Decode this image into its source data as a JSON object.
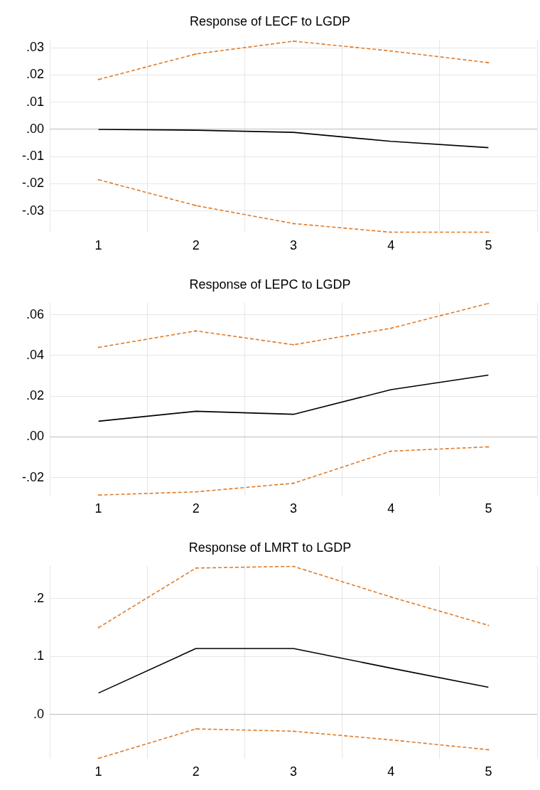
{
  "chart_data": [
    {
      "type": "line",
      "title": "Response of LECF to LGDP",
      "categories": [
        "1",
        "2",
        "3",
        "4",
        "5"
      ],
      "ylim": [
        -0.038,
        0.033
      ],
      "yticks": [
        {
          "value": -0.03,
          "label": "-.03"
        },
        {
          "value": -0.02,
          "label": "-.02"
        },
        {
          "value": -0.01,
          "label": "-.01"
        },
        {
          "value": 0,
          "label": ".00"
        },
        {
          "value": 0.01,
          "label": ".01"
        },
        {
          "value": 0.02,
          "label": ".02"
        },
        {
          "value": 0.03,
          "label": ".03"
        }
      ],
      "grid": true,
      "series": [
        {
          "color": "#e07b28",
          "line_style": "dashed",
          "values": [
            0.0183,
            0.0277,
            0.0324,
            0.0288,
            0.0245
          ]
        },
        {
          "color": "#000000",
          "line_style": "solid",
          "values": [
            0,
            -0.0003,
            -0.0011,
            -0.0044,
            -0.0067
          ]
        },
        {
          "color": "#e07b28",
          "line_style": "dashed",
          "values": [
            -0.0185,
            -0.028,
            -0.0346,
            -0.0378,
            -0.0378
          ]
        }
      ]
    },
    {
      "type": "line",
      "title": "Response of LEPC to LGDP",
      "categories": [
        "1",
        "2",
        "3",
        "4",
        "5"
      ],
      "ylim": [
        -0.029,
        0.066
      ],
      "yticks": [
        {
          "value": -0.02,
          "label": "-.02"
        },
        {
          "value": 0,
          "label": ".00"
        },
        {
          "value": 0.02,
          "label": ".02"
        },
        {
          "value": 0.04,
          "label": ".04"
        },
        {
          "value": 0.06,
          "label": ".06"
        }
      ],
      "grid": true,
      "series": [
        {
          "color": "#e07b28",
          "line_style": "dashed",
          "values": [
            0.044,
            0.0521,
            0.0453,
            0.0534,
            0.0656
          ]
        },
        {
          "color": "#000000",
          "line_style": "solid",
          "values": [
            0.0077,
            0.0126,
            0.0111,
            0.0232,
            0.0304
          ]
        },
        {
          "color": "#e07b28",
          "line_style": "dashed",
          "values": [
            -0.0286,
            -0.027,
            -0.0228,
            -0.007,
            -0.0049
          ]
        }
      ]
    },
    {
      "type": "line",
      "title": "Response of LMRT to LGDP",
      "categories": [
        "1",
        "2",
        "3",
        "4",
        "5"
      ],
      "ylim": [
        -0.077,
        0.257
      ],
      "yticks": [
        {
          "value": 0,
          "label": ".0"
        },
        {
          "value": 0.1,
          "label": ".1"
        },
        {
          "value": 0.2,
          "label": ".2"
        }
      ],
      "grid": true,
      "series": [
        {
          "color": "#e07b28",
          "line_style": "dashed",
          "values": [
            0.15,
            0.253,
            0.256,
            0.203,
            0.154
          ]
        },
        {
          "color": "#000000",
          "line_style": "solid",
          "values": [
            0.037,
            0.114,
            0.114,
            0.08,
            0.047
          ]
        },
        {
          "color": "#e07b28",
          "line_style": "dashed",
          "values": [
            -0.076,
            -0.025,
            -0.029,
            -0.044,
            -0.061
          ]
        }
      ]
    }
  ]
}
